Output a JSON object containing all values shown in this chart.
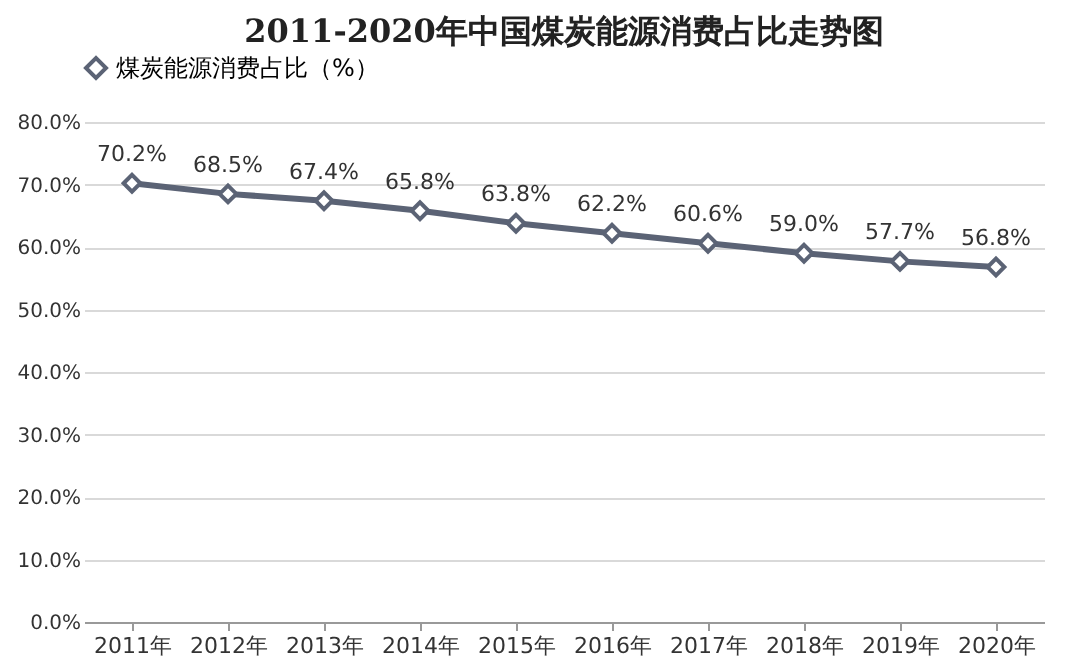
{
  "chart_data": {
    "type": "line",
    "title": "2011-2020年中国煤炭能源消费占比走势图",
    "categories": [
      "2011年",
      "2012年",
      "2013年",
      "2014年",
      "2015年",
      "2016年",
      "2017年",
      "2018年",
      "2019年",
      "2020年"
    ],
    "series": [
      {
        "name": "煤炭能源消费占比（%）",
        "color": "#5b6375",
        "values": [
          70.2,
          68.5,
          67.4,
          65.8,
          63.8,
          62.2,
          60.6,
          59.0,
          57.7,
          56.8
        ],
        "value_labels": [
          "70.2%",
          "68.5%",
          "67.4%",
          "65.8%",
          "63.8%",
          "62.2%",
          "60.6%",
          "59.0%",
          "57.7%",
          "56.8%"
        ]
      }
    ],
    "ylim": [
      0,
      80
    ],
    "yticks": [
      {
        "value": 0,
        "label": "0.0%"
      },
      {
        "value": 10,
        "label": "10.0%"
      },
      {
        "value": 20,
        "label": "20.0%"
      },
      {
        "value": 30,
        "label": "30.0%"
      },
      {
        "value": 40,
        "label": "40.0%"
      },
      {
        "value": 50,
        "label": "50.0%"
      },
      {
        "value": 60,
        "label": "60.0%"
      },
      {
        "value": 70,
        "label": "70.0%"
      },
      {
        "value": 80,
        "label": "80.0%"
      }
    ],
    "grid": "y",
    "legend": "top",
    "marker": "diamond",
    "line_style": "solid"
  }
}
